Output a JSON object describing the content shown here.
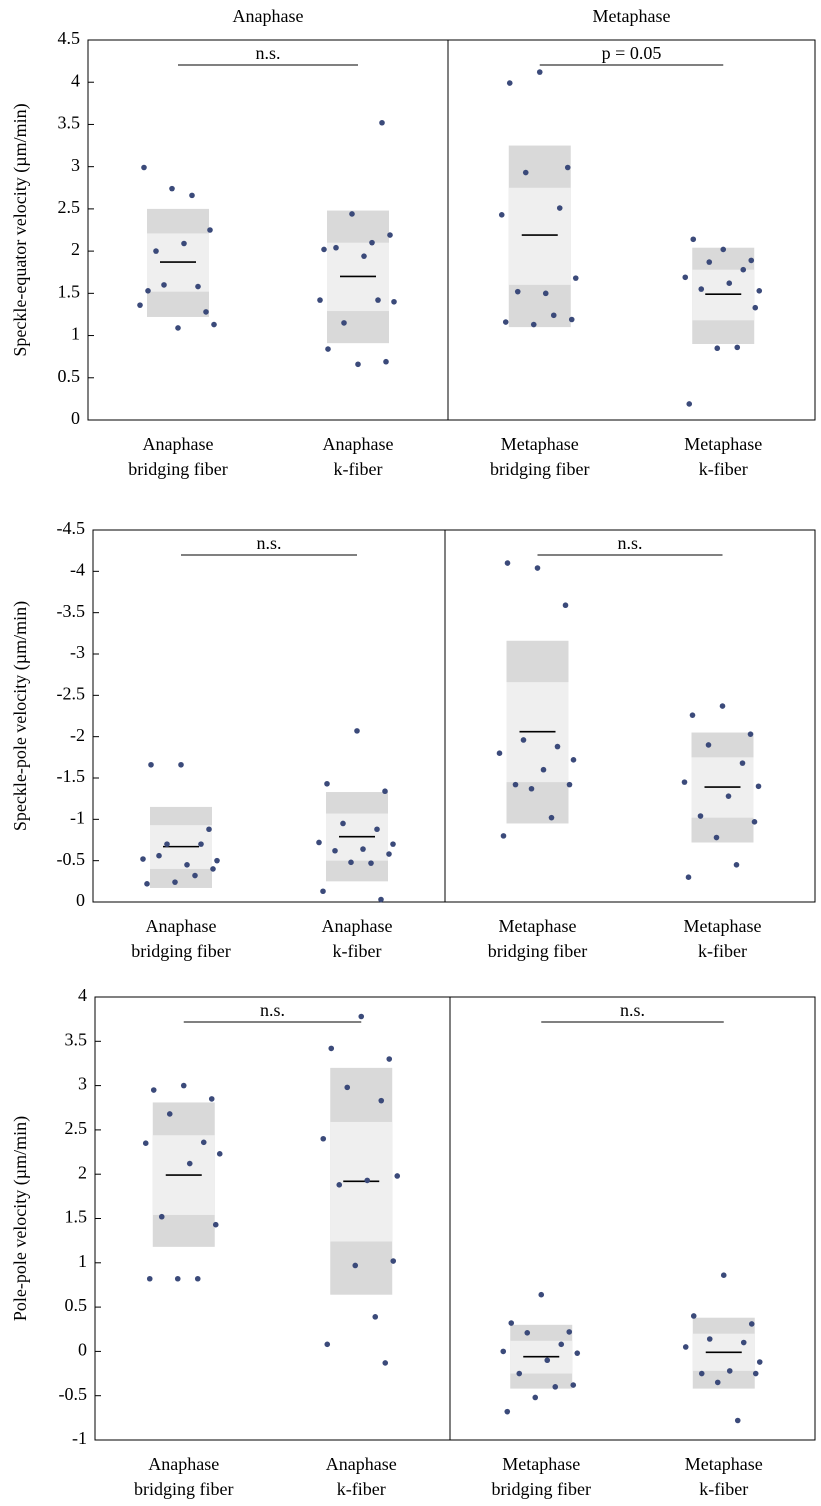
{
  "chart_data": [
    {
      "type": "strip",
      "panel_titles": [
        "Anaphase",
        "Metaphase"
      ],
      "ylabel": "Speckle-equator velocity (µm/min)",
      "ylim": [
        0,
        4.5
      ],
      "yticks": [
        0,
        0.5,
        1,
        1.5,
        2,
        2.5,
        3,
        3.5,
        4,
        4.5
      ],
      "point_color": "#3b4a7a",
      "outer_color": "#d9d9d9",
      "inner_color": "#efefef",
      "annotations": [
        "n.s.",
        "p = 0.05"
      ],
      "groups": [
        {
          "label": [
            "Anaphase",
            "bridging fiber"
          ],
          "points": [
            1.09,
            1.53,
            1.28,
            1.6,
            1.58,
            1.36,
            1.13,
            2.09,
            2.0,
            2.25,
            2.74,
            2.66,
            2.99
          ],
          "mean": 1.87,
          "outer": [
            1.22,
            2.5
          ],
          "inner": [
            1.52,
            2.21
          ]
        },
        {
          "label": [
            "Anaphase",
            "k-fiber"
          ],
          "points": [
            0.66,
            0.84,
            0.69,
            1.15,
            1.42,
            1.42,
            1.4,
            1.94,
            2.04,
            2.19,
            2.44,
            2.1,
            2.02,
            3.52
          ],
          "mean": 1.7,
          "outer": [
            0.91,
            2.48
          ],
          "inner": [
            1.29,
            2.1
          ]
        },
        {
          "label": [
            "Metaphase",
            "bridging fiber"
          ],
          "points": [
            4.12,
            3.99,
            2.99,
            2.93,
            2.51,
            2.43,
            1.68,
            1.5,
            1.52,
            1.19,
            1.13,
            1.24,
            1.16
          ],
          "mean": 2.19,
          "outer": [
            1.1,
            3.25
          ],
          "inner": [
            1.6,
            2.75
          ]
        },
        {
          "label": [
            "Metaphase",
            "k-fiber"
          ],
          "points": [
            2.02,
            2.14,
            1.89,
            1.87,
            1.78,
            1.69,
            1.53,
            1.62,
            1.55,
            1.33,
            0.85,
            0.86,
            0.19
          ],
          "mean": 1.49,
          "outer": [
            0.9,
            2.04
          ],
          "inner": [
            1.18,
            1.78
          ]
        }
      ]
    },
    {
      "type": "strip",
      "ylabel": "Speckle-pole velocity (µm/min)",
      "ylim": [
        0,
        -4.5
      ],
      "yticks": [
        0,
        -0.5,
        -1,
        -1.5,
        -2,
        -2.5,
        -3,
        -3.5,
        -4,
        -4.5
      ],
      "point_color": "#3b4a7a",
      "outer_color": "#d9d9d9",
      "inner_color": "#efefef",
      "annotations": [
        "n.s.",
        "n.s."
      ],
      "groups": [
        {
          "label": [
            "Anaphase",
            "bridging fiber"
          ],
          "points": [
            -1.66,
            -1.66,
            -0.88,
            -0.7,
            -0.7,
            -0.52,
            -0.5,
            -0.45,
            -0.56,
            -0.4,
            -0.24,
            -0.32,
            -0.22
          ],
          "mean": -0.67,
          "outer": [
            -0.17,
            -1.15
          ],
          "inner": [
            -0.4,
            -0.93
          ]
        },
        {
          "label": [
            "Anaphase",
            "k-fiber"
          ],
          "points": [
            -2.07,
            -1.43,
            -1.34,
            -0.95,
            -0.88,
            -0.72,
            -0.7,
            -0.64,
            -0.62,
            -0.58,
            -0.48,
            -0.47,
            -0.13,
            -0.03
          ],
          "mean": -0.79,
          "outer": [
            -0.25,
            -1.33
          ],
          "inner": [
            -0.5,
            -1.07
          ]
        },
        {
          "label": [
            "Metaphase",
            "bridging fiber"
          ],
          "points": [
            -4.04,
            -4.1,
            -3.59,
            -1.96,
            -1.88,
            -1.8,
            -1.72,
            -1.6,
            -1.42,
            -1.42,
            -1.37,
            -1.02,
            -0.8
          ],
          "mean": -2.06,
          "outer": [
            -0.95,
            -3.16
          ],
          "inner": [
            -1.45,
            -2.66
          ]
        },
        {
          "label": [
            "Metaphase",
            "k-fiber"
          ],
          "points": [
            -2.37,
            -2.26,
            -2.03,
            -1.9,
            -1.68,
            -1.45,
            -1.4,
            -1.28,
            -1.04,
            -0.97,
            -0.78,
            -0.45,
            -0.3
          ],
          "mean": -1.39,
          "outer": [
            -0.72,
            -2.05
          ],
          "inner": [
            -1.02,
            -1.75
          ]
        }
      ]
    },
    {
      "type": "strip",
      "ylabel": "Pole-pole velocity (µm/min)",
      "ylim": [
        -1,
        4
      ],
      "yticks": [
        -1,
        -0.5,
        0,
        0.5,
        1,
        1.5,
        2,
        2.5,
        3,
        3.5,
        4
      ],
      "point_color": "#3b4a7a",
      "outer_color": "#d9d9d9",
      "inner_color": "#efefef",
      "annotations": [
        "n.s.",
        "n.s."
      ],
      "groups": [
        {
          "label": [
            "Anaphase",
            "bridging fiber"
          ],
          "points": [
            3.0,
            2.95,
            2.85,
            2.68,
            2.36,
            2.35,
            2.23,
            2.12,
            1.52,
            1.43,
            0.82,
            0.82,
            0.82
          ],
          "mean": 1.99,
          "outer": [
            1.18,
            2.81
          ],
          "inner": [
            1.54,
            2.44
          ]
        },
        {
          "label": [
            "Anaphase",
            "k-fiber"
          ],
          "points": [
            3.78,
            3.42,
            3.3,
            2.98,
            2.83,
            2.4,
            1.98,
            1.93,
            1.88,
            1.02,
            0.97,
            0.39,
            0.08,
            -0.13
          ],
          "mean": 1.92,
          "outer": [
            0.64,
            3.2
          ],
          "inner": [
            1.24,
            2.59
          ]
        },
        {
          "label": [
            "Metaphase",
            "bridging fiber"
          ],
          "points": [
            0.64,
            0.32,
            0.22,
            0.21,
            0.08,
            0.0,
            -0.02,
            -0.1,
            -0.25,
            -0.38,
            -0.52,
            -0.4,
            -0.68
          ],
          "mean": -0.06,
          "outer": [
            -0.42,
            0.3
          ],
          "inner": [
            -0.25,
            0.12
          ]
        },
        {
          "label": [
            "Metaphase",
            "k-fiber"
          ],
          "points": [
            0.86,
            0.4,
            0.31,
            0.14,
            0.1,
            0.05,
            -0.12,
            -0.22,
            -0.25,
            -0.25,
            -0.35,
            -0.78
          ],
          "mean": -0.01,
          "outer": [
            -0.42,
            0.38
          ],
          "inner": [
            -0.22,
            0.2
          ]
        }
      ]
    }
  ]
}
